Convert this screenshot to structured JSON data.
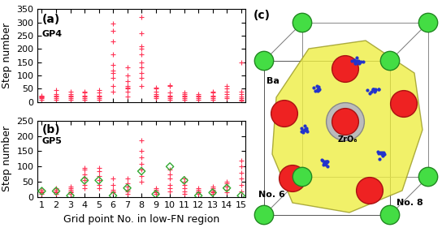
{
  "chart_data": [
    {
      "type": "scatter",
      "annotations": [
        "(a)",
        "GP4"
      ],
      "y_label": "Step number",
      "xlim": [
        0.7,
        15.3
      ],
      "xticks": [
        1,
        2,
        3,
        4,
        5,
        6,
        7,
        8,
        9,
        10,
        11,
        12,
        13,
        14,
        15
      ],
      "ylim": [
        0,
        350
      ],
      "yticks": [
        0,
        50,
        100,
        150,
        200,
        250,
        300,
        350
      ],
      "tick_labels": "y",
      "series": [
        {
          "color": "#ff3355",
          "marker": "plus",
          "x": [
            1,
            1,
            1,
            1,
            1,
            1,
            2,
            2,
            2,
            2,
            2,
            2,
            3,
            3,
            3,
            3,
            3,
            3,
            4,
            4,
            4,
            4,
            4,
            4,
            5,
            5,
            5,
            5,
            5,
            5,
            6,
            6,
            6,
            6,
            6,
            6,
            6,
            6,
            6,
            6,
            7,
            7,
            7,
            7,
            7,
            7,
            7,
            7,
            8,
            8,
            8,
            8,
            8,
            8,
            8,
            8,
            8,
            8,
            9,
            9,
            9,
            9,
            9,
            9,
            9,
            10,
            10,
            10,
            10,
            10,
            10,
            10,
            11,
            11,
            11,
            11,
            11,
            11,
            12,
            12,
            12,
            12,
            12,
            13,
            13,
            13,
            13,
            13,
            13,
            14,
            14,
            14,
            14,
            14,
            14,
            15,
            15,
            15,
            15,
            15,
            15,
            15
          ],
          "values": [
            10,
            15,
            18,
            20,
            22,
            25,
            10,
            15,
            20,
            25,
            30,
            45,
            10,
            15,
            20,
            25,
            30,
            40,
            10,
            15,
            20,
            25,
            35,
            40,
            10,
            15,
            20,
            25,
            35,
            45,
            40,
            60,
            90,
            110,
            120,
            140,
            180,
            230,
            270,
            295,
            20,
            40,
            50,
            55,
            60,
            80,
            100,
            130,
            60,
            90,
            110,
            130,
            150,
            180,
            200,
            210,
            260,
            320,
            15,
            20,
            25,
            30,
            40,
            50,
            55,
            10,
            15,
            20,
            25,
            35,
            60,
            65,
            10,
            15,
            20,
            25,
            30,
            35,
            10,
            15,
            20,
            25,
            30,
            10,
            15,
            20,
            25,
            35,
            40,
            15,
            20,
            30,
            40,
            50,
            60,
            5,
            10,
            15,
            20,
            30,
            40,
            150
          ]
        }
      ]
    },
    {
      "type": "scatter",
      "annotations": [
        "(b)",
        "GP5"
      ],
      "y_label": "Step number",
      "x_label": "Grid point No. in low-FN region",
      "xlim": [
        0.7,
        15.3
      ],
      "xticks": [
        1,
        2,
        3,
        4,
        5,
        6,
        7,
        8,
        9,
        10,
        11,
        12,
        13,
        14,
        15
      ],
      "ylim": [
        0,
        250
      ],
      "yticks": [
        0,
        50,
        100,
        150,
        200,
        250
      ],
      "series": [
        {
          "color": "#ff3355",
          "marker": "plus",
          "x": [
            1,
            1,
            1,
            1,
            2,
            2,
            2,
            2,
            2,
            3,
            3,
            3,
            3,
            3,
            3,
            4,
            4,
            4,
            4,
            4,
            4,
            4,
            5,
            5,
            5,
            5,
            5,
            5,
            6,
            6,
            6,
            6,
            6,
            7,
            7,
            7,
            7,
            7,
            7,
            8,
            8,
            8,
            8,
            8,
            8,
            8,
            9,
            9,
            9,
            9,
            9,
            10,
            10,
            10,
            10,
            10,
            10,
            11,
            11,
            11,
            11,
            11,
            11,
            12,
            12,
            12,
            12,
            12,
            13,
            13,
            13,
            13,
            13,
            13,
            14,
            14,
            14,
            14,
            14,
            15,
            15,
            15,
            15,
            15,
            15
          ],
          "values": [
            10,
            15,
            20,
            25,
            10,
            15,
            20,
            25,
            30,
            10,
            15,
            20,
            25,
            30,
            35,
            30,
            40,
            55,
            65,
            75,
            90,
            95,
            30,
            40,
            55,
            70,
            85,
            95,
            15,
            20,
            25,
            40,
            60,
            10,
            20,
            25,
            35,
            45,
            60,
            50,
            70,
            90,
            110,
            130,
            150,
            185,
            10,
            15,
            20,
            25,
            30,
            20,
            30,
            40,
            60,
            75,
            90,
            10,
            20,
            30,
            40,
            50,
            60,
            10,
            15,
            20,
            25,
            30,
            10,
            15,
            20,
            25,
            30,
            35,
            15,
            25,
            35,
            45,
            50,
            20,
            40,
            60,
            80,
            100,
            120
          ]
        },
        {
          "color": "#33aa33",
          "marker": "diamond",
          "x": [
            1,
            2,
            3,
            4,
            5,
            6,
            7,
            8,
            9,
            10,
            11,
            12,
            13,
            14,
            15
          ],
          "values": [
            20,
            20,
            5,
            55,
            55,
            5,
            30,
            85,
            10,
            100,
            55,
            5,
            15,
            30,
            5
          ]
        }
      ]
    }
  ],
  "diagram": {
    "panel_label": "(c)",
    "labels": [
      "Ba",
      "ZrO₆",
      "No. 6",
      "No. 8"
    ]
  }
}
